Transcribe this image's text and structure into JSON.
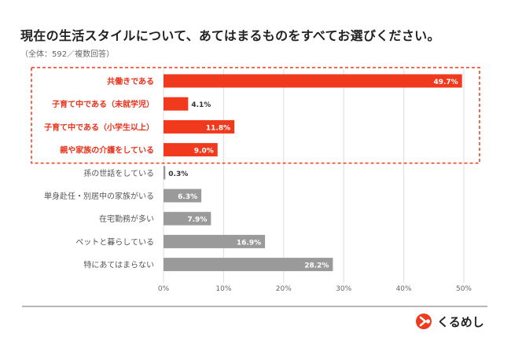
{
  "title": "現在の生活スタイルについて、あてはまるものをすべてお選びください。",
  "subtitle": "（全体：592／複数回答）",
  "brand": {
    "name": "くるめし",
    "color": "#f0391d",
    "icon": "kurumeshi-logo-icon"
  },
  "colors": {
    "highlight": "#f0391d",
    "normal": "#9a9a9a",
    "highlight_label": "#e8321c",
    "normal_label": "#555555",
    "frame": "#f0391d"
  },
  "chart_data": {
    "type": "bar",
    "orientation": "horizontal",
    "categories": [
      "共働きである",
      "子育て中である（未就学児）",
      "子育て中である（小学生以上）",
      "親や家族の介護をしている",
      "孫の世話をしている",
      "単身赴任・別居中の家族がいる",
      "在宅勤務が多い",
      "ペットと暮らしている",
      "特にあてはまらない"
    ],
    "values": [
      49.7,
      4.1,
      11.8,
      9.0,
      0.3,
      6.3,
      7.9,
      16.9,
      28.2
    ],
    "value_labels": [
      "49.7%",
      "4.1%",
      "11.8%",
      "9.0%",
      "0.3%",
      "6.3%",
      "7.9%",
      "16.9%",
      "28.2%"
    ],
    "highlighted": [
      true,
      true,
      true,
      true,
      false,
      false,
      false,
      false,
      false
    ],
    "xlim": [
      0,
      50
    ],
    "xticks": [
      0,
      10,
      20,
      30,
      40,
      50
    ],
    "xtick_labels": [
      "0%",
      "10%",
      "20%",
      "30%",
      "40%",
      "50%"
    ],
    "grid": true,
    "highlight_frame": "dashed"
  }
}
